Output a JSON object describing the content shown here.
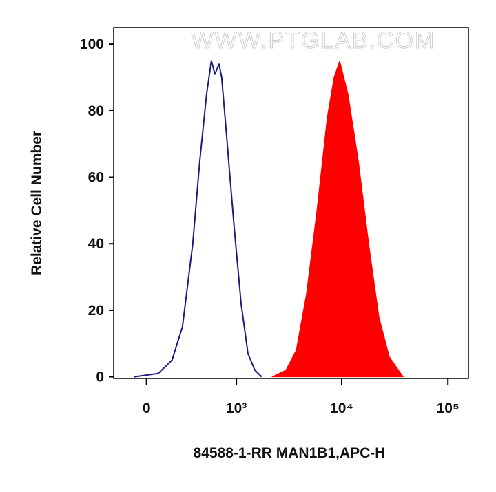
{
  "chart_data": {
    "type": "histogram-overlay",
    "watermark": "WWW.PTGLAB.COM",
    "xlabel": "84588-1-RR MAN1B1,APC-H",
    "ylabel": "Relative Cell Number",
    "x_scale": "biexponential",
    "xlim": [
      -225,
      156000
    ],
    "ylim": [
      -0.5,
      105
    ],
    "xticks": [
      0,
      {
        "value": 1000,
        "label": "10³"
      },
      {
        "value": 10000,
        "label": "10⁴"
      },
      {
        "value": 100000,
        "label": "10⁵"
      }
    ],
    "yticks": [
      0,
      20,
      40,
      60,
      80,
      100
    ],
    "series": [
      {
        "style": "outline",
        "color": "#1a1a80",
        "x": [
          -79,
          75,
          169,
          250,
          343,
          416,
          496,
          558,
          607,
          670,
          714,
          812,
          951,
          1112,
          1295,
          1507,
          1754
        ],
        "values": [
          0,
          1,
          5,
          15,
          40,
          65,
          85,
          95,
          91,
          94,
          90,
          70,
          45,
          22,
          7,
          2,
          0
        ]
      },
      {
        "style": "filled",
        "color": "#ff0000",
        "x": [
          2206,
          2977,
          3725,
          4656,
          5840,
          7304,
          8468,
          9574,
          11465,
          14346,
          17955,
          22436,
          28110,
          37917
        ],
        "values": [
          0,
          2,
          8,
          25,
          50,
          78,
          90,
          95,
          85,
          65,
          40,
          18,
          6,
          0
        ]
      }
    ]
  }
}
